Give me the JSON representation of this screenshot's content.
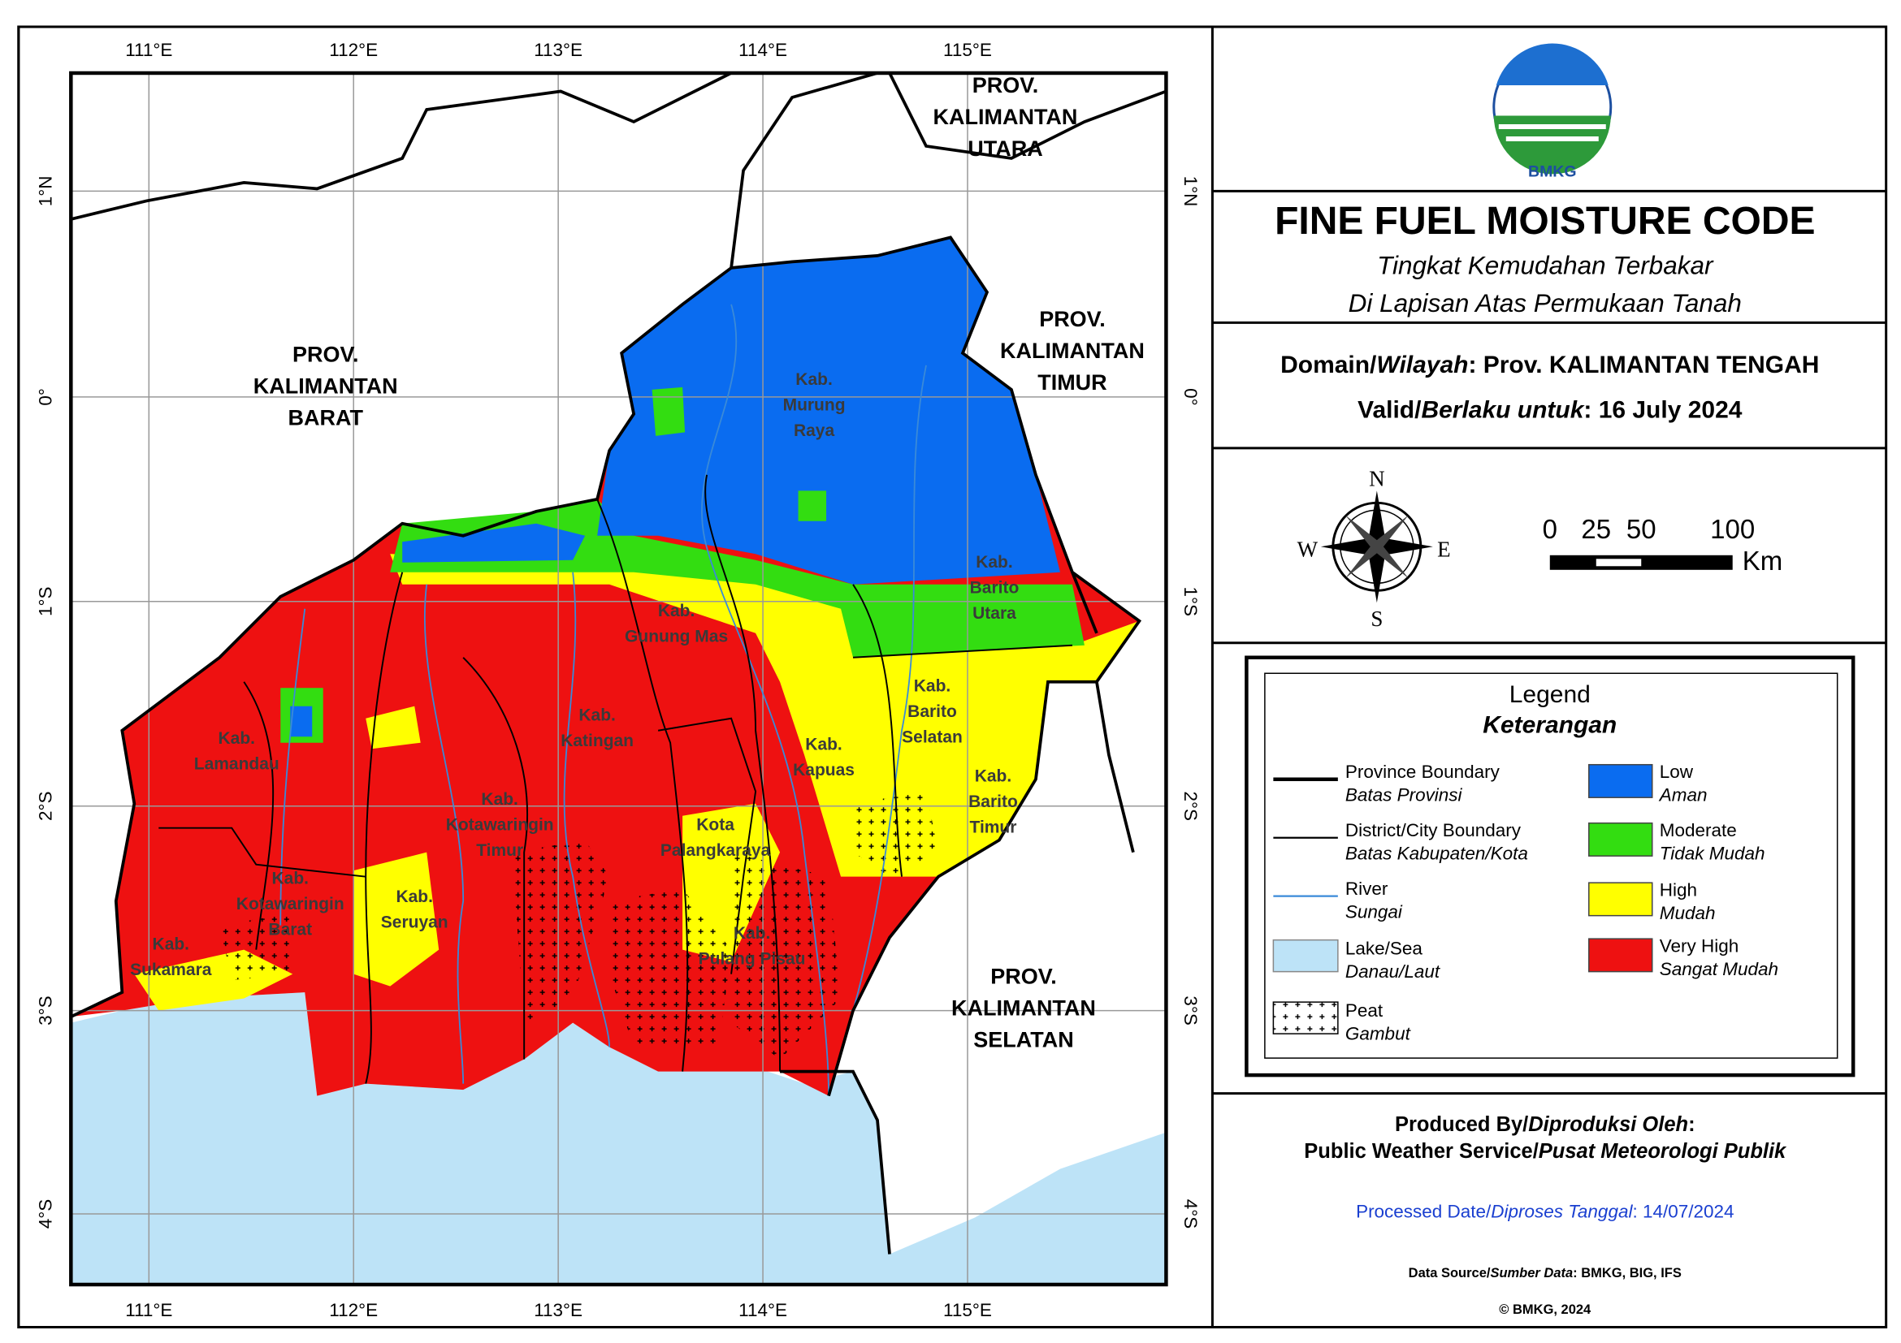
{
  "map": {
    "lon_labels": [
      "111°E",
      "112°E",
      "113°E",
      "114°E",
      "115°E"
    ],
    "lat_labels": [
      "1°N",
      "0°",
      "1°S",
      "2°S",
      "3°S",
      "4°S"
    ],
    "province_labels": [
      {
        "lines": [
          "PROV.",
          "KALIMANTAN",
          "UTARA"
        ]
      },
      {
        "lines": [
          "PROV.",
          "KALIMANTAN",
          "BARAT"
        ]
      },
      {
        "lines": [
          "PROV.",
          "KALIMANTAN",
          "TIMUR"
        ]
      },
      {
        "lines": [
          "PROV.",
          "KALIMANTAN",
          "SELATAN"
        ]
      }
    ],
    "regency_labels": [
      {
        "lines": [
          "Kab.",
          "Murung",
          "Raya"
        ]
      },
      {
        "lines": [
          "Kab.",
          "Barito",
          "Utara"
        ]
      },
      {
        "lines": [
          "Kab.",
          "Gunung Mas"
        ]
      },
      {
        "lines": [
          "Kab.",
          "Katingan"
        ]
      },
      {
        "lines": [
          "Kab.",
          "Lamandau"
        ]
      },
      {
        "lines": [
          "Kab.",
          "Kapuas"
        ]
      },
      {
        "lines": [
          "Kab.",
          "Barito",
          "Selatan"
        ]
      },
      {
        "lines": [
          "Kab.",
          "Barito",
          "Timur"
        ]
      },
      {
        "lines": [
          "Kab.",
          "Kotawaringin",
          "Timur"
        ]
      },
      {
        "lines": [
          "Kota",
          "Palangkaraya"
        ]
      },
      {
        "lines": [
          "Kab.",
          "Kotawaringin",
          "Barat"
        ]
      },
      {
        "lines": [
          "Kab.",
          "Seruyan"
        ]
      },
      {
        "lines": [
          "Kab.",
          "Pulang Pisau"
        ]
      },
      {
        "lines": [
          "Kab.",
          "Sukamara"
        ]
      }
    ]
  },
  "header": {
    "logo_text": "BMKG",
    "title": "FINE FUEL MOISTURE CODE",
    "subtitle_lines": [
      "Tingkat Kemudahan Terbakar",
      "Di Lapisan Atas Permukaan Tanah"
    ]
  },
  "domain": {
    "prefix": "Domain/",
    "prefix_italic": "Wilayah",
    "value": ": Prov. KALIMANTAN TENGAH"
  },
  "validity": {
    "prefix": "Valid/",
    "prefix_italic": "Berlaku untuk",
    "value": ": 16 July 2024"
  },
  "compass": {
    "n": "N",
    "s": "S",
    "e": "E",
    "w": "W"
  },
  "scale_bar": {
    "labels": [
      "0",
      "25",
      "50",
      "100"
    ],
    "unit": "Km"
  },
  "legend": {
    "title": "Legend",
    "subtitle": "Keterangan",
    "lines": [
      {
        "label": "Province Boundary",
        "label_id": "Batas Provinsi"
      },
      {
        "label": "District/City Boundary",
        "label_id": "Batas Kabupaten/Kota"
      },
      {
        "label": "River",
        "label_id": "Sungai"
      },
      {
        "label": "Lake/Sea",
        "label_id": "Danau/Laut"
      },
      {
        "label": "Peat",
        "label_id": "Gambut"
      }
    ],
    "classes": [
      {
        "label": "Low",
        "label_id": "Aman",
        "color": "#0a6cf0"
      },
      {
        "label": "Moderate",
        "label_id": "Tidak Mudah",
        "color": "#33dd11"
      },
      {
        "label": "High",
        "label_id": "Mudah",
        "color": "#ffff00"
      },
      {
        "label": "Very High",
        "label_id": "Sangat Mudah",
        "color": "#ee1111"
      }
    ]
  },
  "credits": {
    "produced_prefix": "Produced By/",
    "produced_italic": "Diproduksi Oleh",
    "produced_suffix": ":",
    "service": "Public Weather Service/",
    "service_italic": "Pusat Meteorologi Publik",
    "processed_prefix": "Processed Date/",
    "processed_italic": "Diproses Tanggal",
    "processed_value": ": 14/07/2024",
    "source_prefix": "Data Source/",
    "source_italic": "Sumber Data",
    "source_value": ": BMKG, BIG, IFS",
    "copyright": "© BMKG, 2024"
  }
}
